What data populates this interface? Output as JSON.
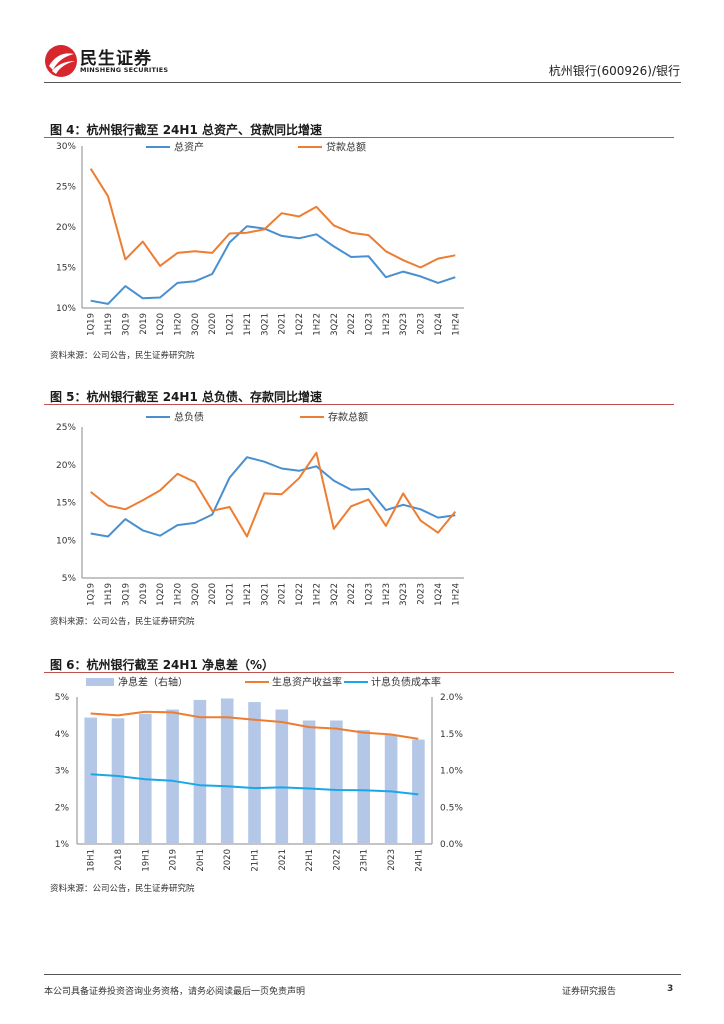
{
  "header": {
    "logo_text": "民生证券",
    "logo_sub": "MINSHENG SECURITIES",
    "doc_title": "杭州银行(600926)/银行"
  },
  "colors": {
    "blue": "#4a8fcf",
    "orange": "#ed7d31",
    "bar": "#b4c7e7",
    "cyan": "#1aa7e8",
    "accent": "#c0504d"
  },
  "chart_data": [
    {
      "type": "line",
      "title": "图 4：杭州银行截至 24H1 总资产、贷款同比增速",
      "source": "资料来源：公司公告，民生证券研究院",
      "categories": [
        "1Q19",
        "1H19",
        "3Q19",
        "2019",
        "1Q20",
        "1H20",
        "3Q20",
        "2020",
        "1Q21",
        "1H21",
        "3Q21",
        "2021",
        "1Q22",
        "1H22",
        "3Q22",
        "2022",
        "1Q23",
        "1H23",
        "3Q23",
        "2023",
        "1Q24",
        "1H24"
      ],
      "y_ticks": [
        "30%",
        "25%",
        "20%",
        "15%",
        "10%"
      ],
      "ylim": [
        10,
        30
      ],
      "series": [
        {
          "name": "总资产",
          "values": [
            10.9,
            10.5,
            12.7,
            11.2,
            11.3,
            13.1,
            13.3,
            14.2,
            18.1,
            20.1,
            19.8,
            18.9,
            18.6,
            19.1,
            17.6,
            16.3,
            16.4,
            13.8,
            14.5,
            13.9,
            13.1,
            13.8
          ]
        },
        {
          "name": "贷款总额",
          "values": [
            27.2,
            23.8,
            16.0,
            18.2,
            15.2,
            16.8,
            17.0,
            16.8,
            19.2,
            19.3,
            19.7,
            21.7,
            21.3,
            22.5,
            20.2,
            19.3,
            19.0,
            17.0,
            15.9,
            15.0,
            16.1,
            16.5
          ]
        }
      ]
    },
    {
      "type": "line",
      "title": "图 5：杭州银行截至 24H1 总负债、存款同比增速",
      "source": "资料来源：公司公告，民生证券研究院",
      "categories": [
        "1Q19",
        "1H19",
        "3Q19",
        "2019",
        "1Q20",
        "1H20",
        "3Q20",
        "2020",
        "1Q21",
        "1H21",
        "3Q21",
        "2021",
        "1Q22",
        "1H22",
        "3Q22",
        "2022",
        "1Q23",
        "1H23",
        "3Q23",
        "2023",
        "1Q24",
        "1H24"
      ],
      "y_ticks": [
        "25%",
        "20%",
        "15%",
        "10%",
        "5%"
      ],
      "ylim": [
        5,
        25
      ],
      "series": [
        {
          "name": "总负债",
          "values": [
            10.9,
            10.5,
            12.8,
            11.3,
            10.6,
            12.0,
            12.3,
            13.4,
            18.3,
            21.0,
            20.4,
            19.5,
            19.2,
            19.8,
            17.9,
            16.7,
            16.8,
            14.0,
            14.7,
            14.1,
            13.0,
            13.3
          ]
        },
        {
          "name": "存款总额",
          "values": [
            16.4,
            14.6,
            14.1,
            15.3,
            16.6,
            18.8,
            17.7,
            13.9,
            14.4,
            10.5,
            16.2,
            16.1,
            18.2,
            21.6,
            11.5,
            14.5,
            15.4,
            11.9,
            16.2,
            12.6,
            11.0,
            13.8
          ]
        }
      ]
    },
    {
      "type": "bar+line",
      "title": "图 6：杭州银行截至 24H1 净息差（%）",
      "source": "资料来源：公司公告，民生证券研究院",
      "categories": [
        "18H1",
        "2018",
        "19H1",
        "2019",
        "20H1",
        "2020",
        "21H1",
        "2021",
        "22H1",
        "2022",
        "23H1",
        "2023",
        "24H1"
      ],
      "y_ticks_left": [
        "5%",
        "4%",
        "3%",
        "2%",
        "1%"
      ],
      "y_ticks_right": [
        "2.0%",
        "1.5%",
        "1.0%",
        "0.5%",
        "0.0%"
      ],
      "ylim_left": [
        1,
        5
      ],
      "ylim_right": [
        0,
        2
      ],
      "bars": {
        "name": "净息差（右轴）",
        "values": [
          1.72,
          1.71,
          1.77,
          1.83,
          1.96,
          1.98,
          1.93,
          1.83,
          1.68,
          1.68,
          1.55,
          1.49,
          1.42
        ]
      },
      "series": [
        {
          "name": "生息资产收益率",
          "values": [
            4.55,
            4.5,
            4.6,
            4.58,
            4.45,
            4.45,
            4.38,
            4.32,
            4.18,
            4.14,
            4.03,
            3.98,
            3.86
          ]
        },
        {
          "name": "计息负债成本率",
          "values": [
            2.9,
            2.85,
            2.76,
            2.72,
            2.6,
            2.57,
            2.52,
            2.54,
            2.51,
            2.47,
            2.46,
            2.43,
            2.35
          ]
        }
      ]
    }
  ],
  "footer": {
    "disclaimer": "本公司具备证券投资咨询业务资格，请务必阅读最后一页免责声明",
    "report_type": "证券研究报告",
    "page_number": "3"
  }
}
